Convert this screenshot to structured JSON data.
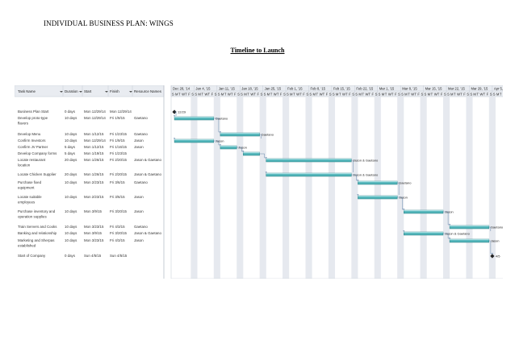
{
  "document": {
    "header": "INDIVIDUAL BUSINESS PLAN: WINGS",
    "title": "Timeline to Launch"
  },
  "gantt": {
    "columns": [
      "Task Name",
      "Duration",
      "Start",
      "Finish",
      "Resource Names"
    ],
    "weeks": [
      "Dec 28, '14",
      "Jan 4, '15",
      "Jan 11, '15",
      "Jan 18, '15",
      "Jan 25, '15",
      "Feb 1, '15",
      "Feb 8, '15",
      "Feb 15, '15",
      "Feb 22, '15",
      "Mar 1, '15",
      "Mar 8, '15",
      "Mar 15, '15",
      "Mar 22, '15",
      "Mar 29, '15",
      "Apr 5, '15"
    ],
    "day_letters": [
      "S",
      "M",
      "T",
      "W",
      "T",
      "F",
      "S"
    ],
    "tasks": [
      {
        "name": [
          "Business Plan Start"
        ],
        "duration": "0 days",
        "start": "Mon 12/29/14",
        "finish": "Mon 12/29/14",
        "resources": "",
        "start_day": 1,
        "finish_day": 1,
        "milestone": true,
        "label": "12/29"
      },
      {
        "name": [
          "Develop proto-type",
          "flavors"
        ],
        "duration": "10 days",
        "start": "Mon 12/29/14",
        "finish": "Fri 1/9/15",
        "resources": "Gaetano",
        "start_day": 1,
        "finish_day": 12,
        "milestone": false,
        "label": "Gaetano"
      },
      {
        "name": [
          "Develop Menu"
        ],
        "duration": "10 days",
        "start": "Mon 1/12/15",
        "finish": "Fri 1/23/15",
        "resources": "Gaetano",
        "start_day": 15,
        "finish_day": 26,
        "milestone": false,
        "label": "Gaetano"
      },
      {
        "name": [
          "Confirm Investors"
        ],
        "duration": "10 days",
        "start": "Mon 12/29/14",
        "finish": "Fri 1/9/15",
        "resources": "Jason",
        "start_day": 1,
        "finish_day": 12,
        "milestone": false,
        "label": "Jason"
      },
      {
        "name": [
          "Confirm JV Partner"
        ],
        "duration": "5 days",
        "start": "Mon 1/12/15",
        "finish": "Fri 1/16/15",
        "resources": "Jason",
        "start_day": 15,
        "finish_day": 19,
        "milestone": false,
        "label": "Jason"
      },
      {
        "name": [
          "Develop Company forms"
        ],
        "duration": "5 days",
        "start": "Mon 1/19/15",
        "finish": "Fri 1/23/15",
        "resources": "",
        "start_day": 22,
        "finish_day": 26,
        "milestone": false,
        "label": ""
      },
      {
        "name": [
          "Locate restaurant",
          "location"
        ],
        "duration": "20 days",
        "start": "Mon 1/26/15",
        "finish": "Fri 2/20/15",
        "resources": "Jason & Gaetano",
        "start_day": 29,
        "finish_day": 54,
        "milestone": false,
        "label": "Jason & Gaetano"
      },
      {
        "name": [
          "Locate Chicken Supplier"
        ],
        "duration": "20 days",
        "start": "Mon 1/26/15",
        "finish": "Fri 2/20/15",
        "resources": "Jason & Gaetano",
        "start_day": 29,
        "finish_day": 54,
        "milestone": false,
        "label": "Jason & Gaetano"
      },
      {
        "name": [
          "Purchase fixed",
          "equipment"
        ],
        "duration": "10 days",
        "start": "Mon 2/23/15",
        "finish": "Fri 3/6/15",
        "resources": "Gaetano",
        "start_day": 57,
        "finish_day": 68,
        "milestone": false,
        "label": "Gaetano"
      },
      {
        "name": [
          "Locate suitable",
          "employees"
        ],
        "duration": "10 days",
        "start": "Mon 2/23/15",
        "finish": "Fri 3/6/15",
        "resources": "Jason",
        "start_day": 57,
        "finish_day": 68,
        "milestone": false,
        "label": "Jason"
      },
      {
        "name": [
          "Purchase inventory and",
          "operation supplies"
        ],
        "duration": "10 days",
        "start": "Mon 3/9/15",
        "finish": "Fri 3/20/15",
        "resources": "Jason",
        "start_day": 71,
        "finish_day": 82,
        "milestone": false,
        "label": "Jason"
      },
      {
        "name": [
          "Train Servers and Cooks"
        ],
        "duration": "10 days",
        "start": "Mon 3/23/15",
        "finish": "Fri 4/3/15",
        "resources": "Gaetano",
        "start_day": 85,
        "finish_day": 96,
        "milestone": false,
        "label": "Gaetano"
      },
      {
        "name": [
          "Banking and relationship"
        ],
        "duration": "10 days",
        "start": "Mon 3/9/15",
        "finish": "Fri 3/20/15",
        "resources": "Jason & Gaetano",
        "start_day": 71,
        "finish_day": 82,
        "milestone": false,
        "label": "Jason & Gaetano"
      },
      {
        "name": [
          "Marketing and Sherpas",
          "established"
        ],
        "duration": "10 days",
        "start": "Mon 3/23/15",
        "finish": "Fri 4/3/15",
        "resources": "Jason",
        "start_day": 85,
        "finish_day": 96,
        "milestone": false,
        "label": "Jason"
      },
      {
        "name": [
          "Start of Company"
        ],
        "duration": "0 days",
        "start": "Sun 4/5/15",
        "finish": "Sun 4/5/15",
        "resources": "",
        "start_day": 98,
        "finish_day": 98,
        "milestone": true,
        "label": "4/5"
      }
    ],
    "colors": {
      "bar_fill": "#4fb3b8",
      "bar_stroke": "#2c7d83",
      "weekend_shade": "#e6e9ef",
      "header_fill": "#e9ecf1",
      "link_color": "#5b7fa6"
    }
  }
}
